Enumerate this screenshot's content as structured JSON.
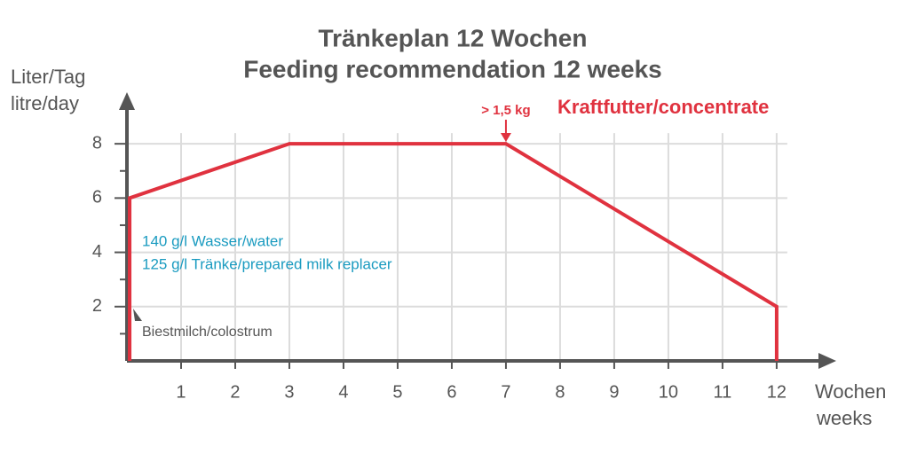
{
  "chart_data": {
    "type": "line",
    "title": "Tränkeplan 12 Wochen",
    "subtitle": "Feeding recommendation 12 weeks",
    "y_label": [
      "Liter/Tag",
      "litre/day"
    ],
    "x_label": [
      "Wochen",
      "weeks"
    ],
    "x": [
      0.05,
      0.05,
      3,
      7,
      12,
      12
    ],
    "series": [
      {
        "name": "Tränke",
        "color": "#e0323f",
        "values": [
          0,
          6,
          8,
          8,
          2,
          0
        ]
      }
    ],
    "xlim": [
      0,
      13.1
    ],
    "ylim": [
      0,
      9.9
    ],
    "xticks": [
      1,
      2,
      3,
      4,
      5,
      6,
      7,
      8,
      9,
      10,
      11,
      12
    ],
    "yticks": [
      2,
      4,
      6,
      8
    ],
    "y_minor_ticks": [
      1,
      3,
      5,
      7
    ],
    "grid": true,
    "annotations": [
      {
        "text": "> 1,5 kg",
        "color": "#e0323f"
      },
      {
        "text": "Kraftfutter/concentrate",
        "color": "#e0323f"
      },
      {
        "text": "140 g/l Wasser/water",
        "color": "#1a9bc0"
      },
      {
        "text": "125 g/l Tränke/prepared milk replacer",
        "color": "#1a9bc0"
      },
      {
        "text": "Biestmilch/colostrum",
        "color": "#555555"
      }
    ]
  }
}
